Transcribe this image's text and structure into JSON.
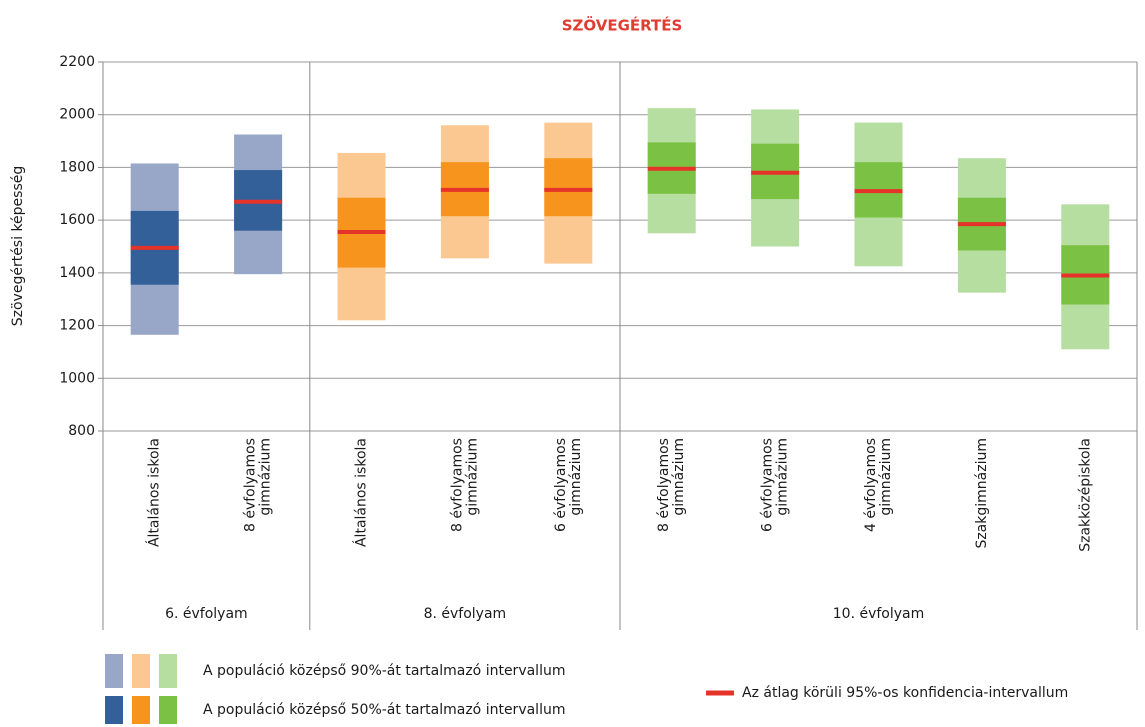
{
  "chart_data": {
    "type": "range",
    "title": "SZÖVEGÉRTÉS",
    "y_label": "Szövegértési képesség",
    "ylim": [
      800,
      2200
    ],
    "yticks": [
      800,
      1000,
      1200,
      1400,
      1600,
      1800,
      2000,
      2200
    ],
    "grid": true,
    "mean_color": "#e63329",
    "groups": [
      {
        "name": "6. évfolyam",
        "outer_color": "#98a6c8",
        "inner_color": "#34609a",
        "categories": [
          [
            "Általános iskola"
          ],
          [
            "8 évfolyamos",
            "gimnázium"
          ]
        ],
        "p5": [
          1165,
          1395
        ],
        "p95": [
          1815,
          1925
        ],
        "p25": [
          1355,
          1560
        ],
        "p75": [
          1635,
          1790
        ],
        "mean": [
          1495,
          1670
        ]
      },
      {
        "name": "8. évfolyam",
        "outer_color": "#fcc891",
        "inner_color": "#f7941d",
        "categories": [
          [
            "Általános iskola"
          ],
          [
            "8 évfolyamos",
            "gimnázium"
          ],
          [
            "6 évfolyamos",
            "gimnázium"
          ]
        ],
        "p5": [
          1220,
          1455,
          1435
        ],
        "p95": [
          1855,
          1960,
          1970
        ],
        "p25": [
          1420,
          1615,
          1615
        ],
        "p75": [
          1685,
          1820,
          1835
        ],
        "mean": [
          1555,
          1715,
          1715
        ]
      },
      {
        "name": "10. évfolyam",
        "outer_color": "#b5dea0",
        "inner_color": "#7bc143",
        "categories": [
          [
            "8 évfolyamos",
            "gimnázium"
          ],
          [
            "6 évfolyamos",
            "gimnázium"
          ],
          [
            "4 évfolyamos",
            "gimnázium"
          ],
          [
            "Szakgimnázium"
          ],
          [
            "Szakközépiskola"
          ]
        ],
        "p5": [
          1550,
          1500,
          1425,
          1325,
          1110
        ],
        "p95": [
          2025,
          2020,
          1970,
          1835,
          1660
        ],
        "p25": [
          1700,
          1680,
          1610,
          1485,
          1280
        ],
        "p75": [
          1895,
          1890,
          1820,
          1685,
          1505
        ],
        "mean": [
          1795,
          1780,
          1710,
          1585,
          1390
        ]
      }
    ],
    "legend": {
      "outer": "A populáció középső 90%-át tartalmazó intervallum",
      "inner": "A populáció középső 50%-át tartalmazó intervallum",
      "mean": "Az átlag körüli 95%-os konfidencia-intervallum"
    }
  }
}
